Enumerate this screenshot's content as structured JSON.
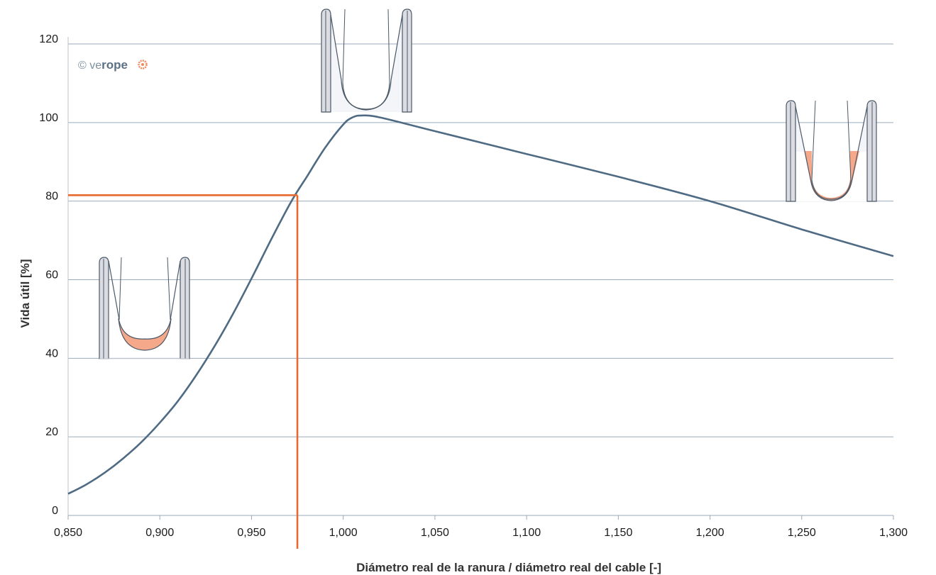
{
  "chart_data": {
    "type": "line",
    "title": "",
    "xlabel": "Diámetro real de la ranura / diámetro real del cable [-]",
    "ylabel": "Vida útil [%]",
    "xlim": [
      0.85,
      1.3
    ],
    "ylim": [
      0,
      120
    ],
    "x_ticks": [
      0.85,
      0.9,
      0.95,
      1.0,
      1.05,
      1.1,
      1.15,
      1.2,
      1.25,
      1.3
    ],
    "x_tick_labels": [
      "0,850",
      "0,900",
      "0,950",
      "1,000",
      "1,050",
      "1,100",
      "1,150",
      "1,200",
      "1,250",
      "1,300"
    ],
    "y_ticks": [
      0,
      20,
      40,
      60,
      80,
      100,
      120
    ],
    "y_tick_labels": [
      "0",
      "20",
      "40",
      "60",
      "80",
      "100",
      "120"
    ],
    "grid": "horizontal",
    "series": [
      {
        "color": "#4f6b83",
        "x": [
          0.85,
          0.86,
          0.87,
          0.88,
          0.89,
          0.9,
          0.91,
          0.92,
          0.93,
          0.94,
          0.95,
          0.96,
          0.97,
          0.975,
          0.98,
          0.99,
          1.0,
          1.005,
          1.01,
          1.02,
          1.05,
          1.1,
          1.15,
          1.2,
          1.25,
          1.3
        ],
        "values": [
          5.5,
          7.9,
          10.9,
          14.5,
          18.7,
          23.6,
          29.2,
          35.8,
          43.2,
          51.4,
          60.3,
          69.6,
          78.5,
          82.5,
          86.1,
          93.5,
          99.5,
          101.3,
          101.8,
          101.3,
          97.8,
          92.0,
          86.2,
          80.0,
          72.8,
          66.0
        ]
      }
    ],
    "reference_lines": {
      "color": "#e8692f",
      "x": 0.975,
      "y": 81.5
    },
    "logo": {
      "prefix": "© ve",
      "bold": "rope"
    },
    "colors": {
      "curve": "#4f6b83",
      "reference": "#e8692f",
      "grid": "#9aabbb",
      "wear_fill": "#f5a98a",
      "sheave_fill": "#dcdde3",
      "sheave_stroke": "#4a5868"
    },
    "groove_icons": [
      {
        "name": "tight-groove-icon",
        "state": "worn"
      },
      {
        "name": "ideal-groove-icon",
        "state": "ideal"
      },
      {
        "name": "wide-groove-icon",
        "state": "worn"
      }
    ]
  }
}
